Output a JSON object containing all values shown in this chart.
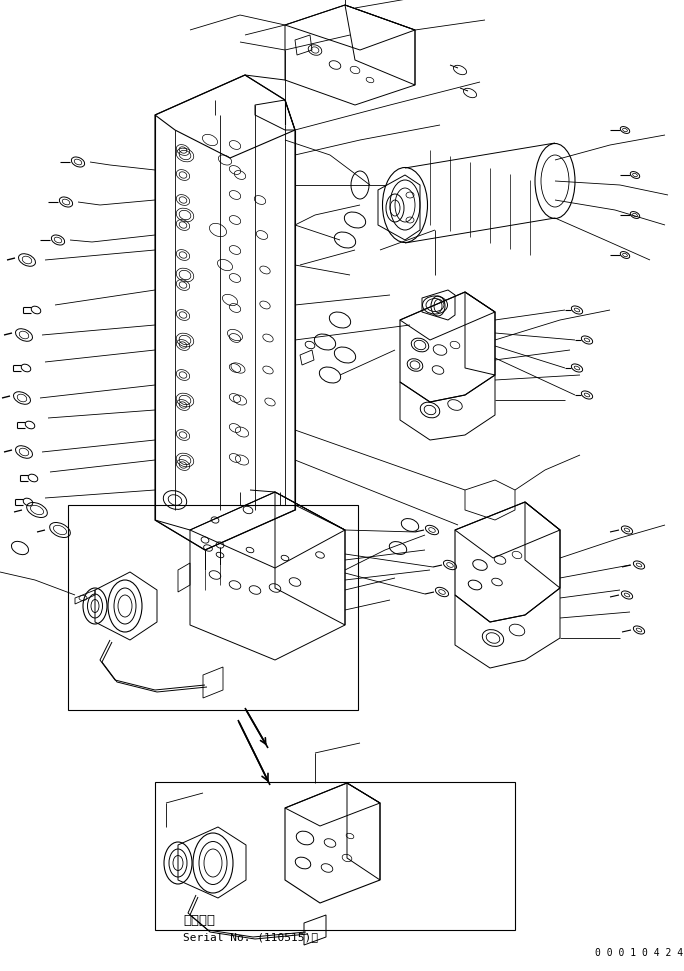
{
  "bg_color": "#ffffff",
  "line_color": "#000000",
  "fig_width": 6.84,
  "fig_height": 9.71,
  "dpi": 100,
  "bottom_text1": "適用号機",
  "bottom_text2": "Serial No. (110515)～",
  "bottom_right_text": "0 0 0 1 0 4 2 4"
}
